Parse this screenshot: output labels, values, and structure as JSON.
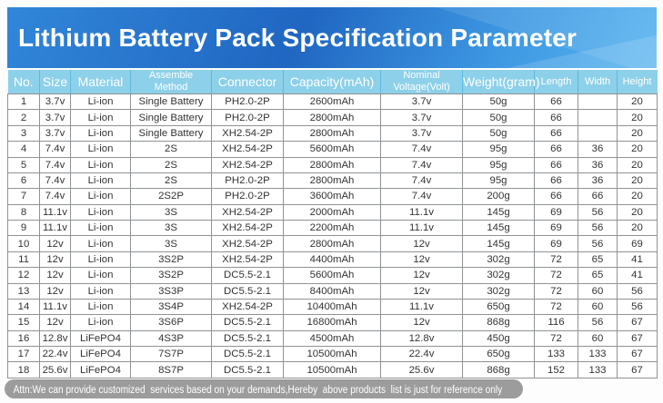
{
  "title": "Lithium Battery Pack Specification Parameter",
  "footer": "Attn:We can provide customized  services based on your demands,Hereby  above products  list is just for reference only",
  "colors": {
    "banner_blue_dark": "#2066c2",
    "banner_blue_light": "#58b5f0",
    "header_bg": "#8dd0e9",
    "grid": "#8f9396",
    "footer_bg": "#9c9c9c"
  },
  "chart_data": {
    "type": "table",
    "title": "Lithium Battery Pack Specification Parameter",
    "columns": [
      "No.",
      "Size",
      "Material",
      "Assemble\nMethod",
      "Connector",
      "Capacity(mAh)",
      "Nominal\nVoltage(Volt)",
      "Weight(gram)",
      "Length",
      "Width",
      "Height"
    ],
    "rows": [
      [
        "1",
        "3.7v",
        "Li-ion",
        "Single Battery",
        "PH2.0-2P",
        "2600mAh",
        "3.7v",
        "50g",
        "66",
        "",
        "20"
      ],
      [
        "2",
        "3.7v",
        "Li-ion",
        "Single Battery",
        "PH2.0-2P",
        "2800mAh",
        "3.7v",
        "50g",
        "66",
        "",
        "20"
      ],
      [
        "3",
        "3.7v",
        "Li-ion",
        "Single Battery",
        "XH2.54-2P",
        "2800mAh",
        "3.7v",
        "50g",
        "66",
        "",
        "20"
      ],
      [
        "4",
        "7.4v",
        "Li-ion",
        "2S",
        "XH2.54-2P",
        "5600mAh",
        "7.4v",
        "95g",
        "66",
        "36",
        "20"
      ],
      [
        "5",
        "7.4v",
        "Li-ion",
        "2S",
        "XH2.54-2P",
        "2800mAh",
        "7.4v",
        "95g",
        "66",
        "36",
        "20"
      ],
      [
        "6",
        "7.4v",
        "Li-ion",
        "2S",
        "PH2.0-2P",
        "2800mAh",
        "7.4v",
        "95g",
        "66",
        "36",
        "20"
      ],
      [
        "7",
        "7.4v",
        "Li-ion",
        "2S2P",
        "PH2.0-2P",
        "3600mAh",
        "7.4v",
        "200g",
        "66",
        "66",
        "20"
      ],
      [
        "8",
        "11.1v",
        "Li-ion",
        "3S",
        "XH2.54-2P",
        "2000mAh",
        "11.1v",
        "145g",
        "69",
        "56",
        "20"
      ],
      [
        "9",
        "11.1v",
        "Li-ion",
        "3S",
        "XH2.54-2P",
        "2200mAh",
        "11.1v",
        "145g",
        "69",
        "56",
        "20"
      ],
      [
        "10",
        "12v",
        "Li-ion",
        "3S",
        "XH2.54-2P",
        "2800mAh",
        "12v",
        "145g",
        "69",
        "56",
        "69"
      ],
      [
        "11",
        "12v",
        "Li-ion",
        "3S2P",
        "XH2.54-2P",
        "4400mAh",
        "12v",
        "302g",
        "72",
        "65",
        "41"
      ],
      [
        "12",
        "12v",
        "Li-ion",
        "3S2P",
        "DC5.5-2.1",
        "5600mAh",
        "12v",
        "302g",
        "72",
        "65",
        "41"
      ],
      [
        "13",
        "12v",
        "Li-ion",
        "3S3P",
        "DC5.5-2.1",
        "8400mAh",
        "12v",
        "302g",
        "72",
        "60",
        "56"
      ],
      [
        "14",
        "11.1v",
        "Li-ion",
        "3S4P",
        "XH2.54-2P",
        "10400mAh",
        "11.1v",
        "650g",
        "72",
        "60",
        "56"
      ],
      [
        "15",
        "12v",
        "Li-ion",
        "3S6P",
        "DC5.5-2.1",
        "16800mAh",
        "12v",
        "868g",
        "116",
        "56",
        "67"
      ],
      [
        "16",
        "12.8v",
        "LiFePO4",
        "4S3P",
        "DC5.5-2.1",
        "4500mAh",
        "12.8v",
        "450g",
        "72",
        "60",
        "67"
      ],
      [
        "17",
        "22.4v",
        "LiFePO4",
        "7S7P",
        "DC5.5-2.1",
        "10500mAh",
        "22.4v",
        "650g",
        "133",
        "133",
        "67"
      ],
      [
        "18",
        "25.6v",
        "LiFePO4",
        "8S7P",
        "DC5.5-2.1",
        "10500mAh",
        "25.6v",
        "868g",
        "152",
        "133",
        "67"
      ]
    ]
  }
}
